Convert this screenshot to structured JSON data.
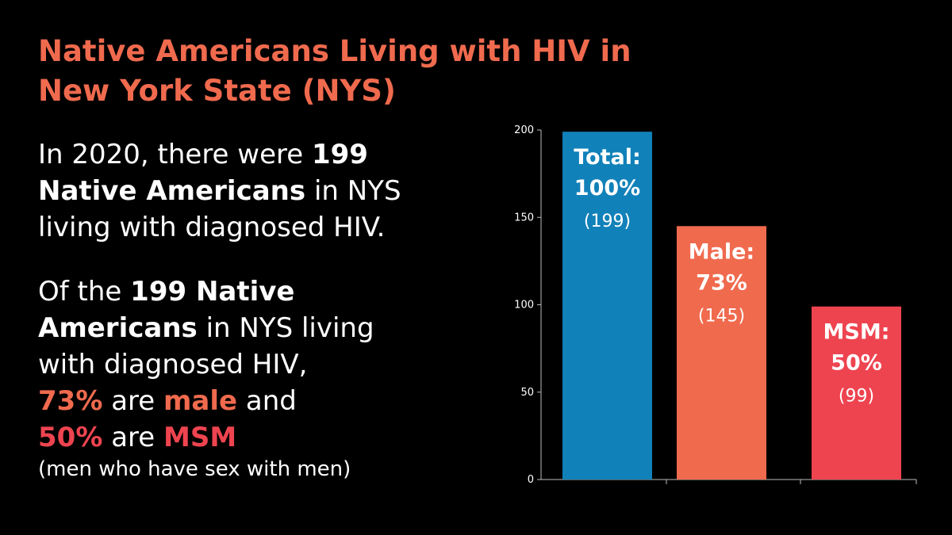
{
  "title": {
    "line1": "Native Americans Living with HIV in",
    "line2": "New York State (NYS)"
  },
  "paragraph1": {
    "l1_a": "In 2020, there were ",
    "l1_b": "199",
    "l2_a": "Native Americans",
    "l2_b": " in NYS",
    "l3": "living with diagnosed HIV."
  },
  "paragraph2": {
    "l1_a": "Of the ",
    "l1_b": "199 Native",
    "l2_a": "Americans",
    "l2_b": " in NYS living",
    "l3": "with diagnosed HIV,",
    "l4_a": "73%",
    "l4_b": " are ",
    "l4_c": "male",
    "l4_d": " and",
    "l5_a": "50%",
    "l5_b": " are ",
    "l5_c": "MSM",
    "note": "(men who have sex with men)"
  },
  "colors": {
    "background": "#000000",
    "title": "#F06A4E",
    "accent_male": "#F06A4E",
    "accent_msm": "#EE4450"
  },
  "chart_data": {
    "type": "bar",
    "categories": [
      "Total",
      "Male",
      "MSM"
    ],
    "values": [
      199,
      145,
      99
    ],
    "bar_labels": [
      {
        "name": "Total:",
        "percent": "100%",
        "count": "(199)"
      },
      {
        "name": "Male:",
        "percent": "73%",
        "count": "(145)"
      },
      {
        "name": "MSM:",
        "percent": "50%",
        "count": "(99)"
      }
    ],
    "bar_colors": [
      "#1181B9",
      "#F06A4E",
      "#EE4450"
    ],
    "yticks": [
      0,
      50,
      100,
      150,
      200
    ],
    "ylim": [
      0,
      200
    ],
    "grid": false,
    "legend": "none"
  }
}
